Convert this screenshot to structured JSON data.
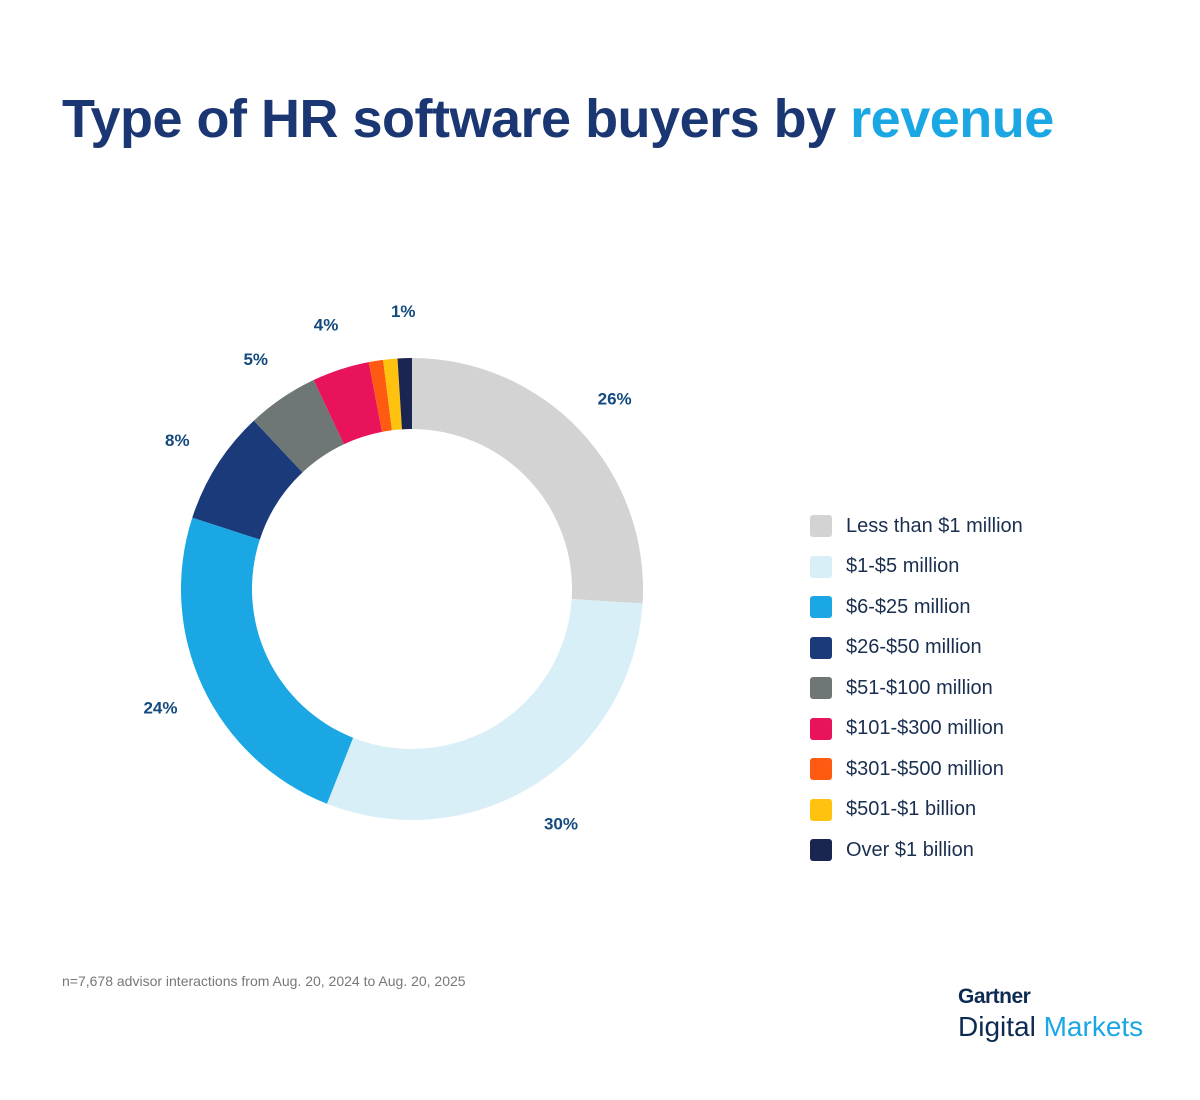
{
  "title": {
    "main": "Type of HR software buyers by ",
    "accent": "revenue"
  },
  "chart_data": {
    "type": "pie",
    "variant": "donut",
    "categories": [
      "Less than $1 million",
      "$1-$5 million",
      "$6-$25 million",
      "$26-$50 million",
      "$51-$100 million",
      "$101-$300 million",
      "$301-$500 million",
      "$501-$1 billion",
      "Over $1 billion"
    ],
    "values": [
      26,
      30,
      24,
      8,
      5,
      4,
      1,
      1,
      1
    ],
    "data_labels": [
      "26%",
      "30%",
      "24%",
      "8%",
      "5%",
      "4%",
      null,
      null,
      "1%"
    ],
    "colors": [
      "#d3d3d3",
      "#d9eff8",
      "#1ba7e4",
      "#1a3a7a",
      "#6e7775",
      "#e8135a",
      "#ff5a12",
      "#ffc20e",
      "#1a2552"
    ],
    "legend_position": "right"
  },
  "footnote": "n=7,678 advisor interactions from Aug. 20, 2024 to Aug. 20, 2025",
  "logo": {
    "line1": "Gartner",
    "line2a": "Digital",
    "line2b": "Markets"
  }
}
